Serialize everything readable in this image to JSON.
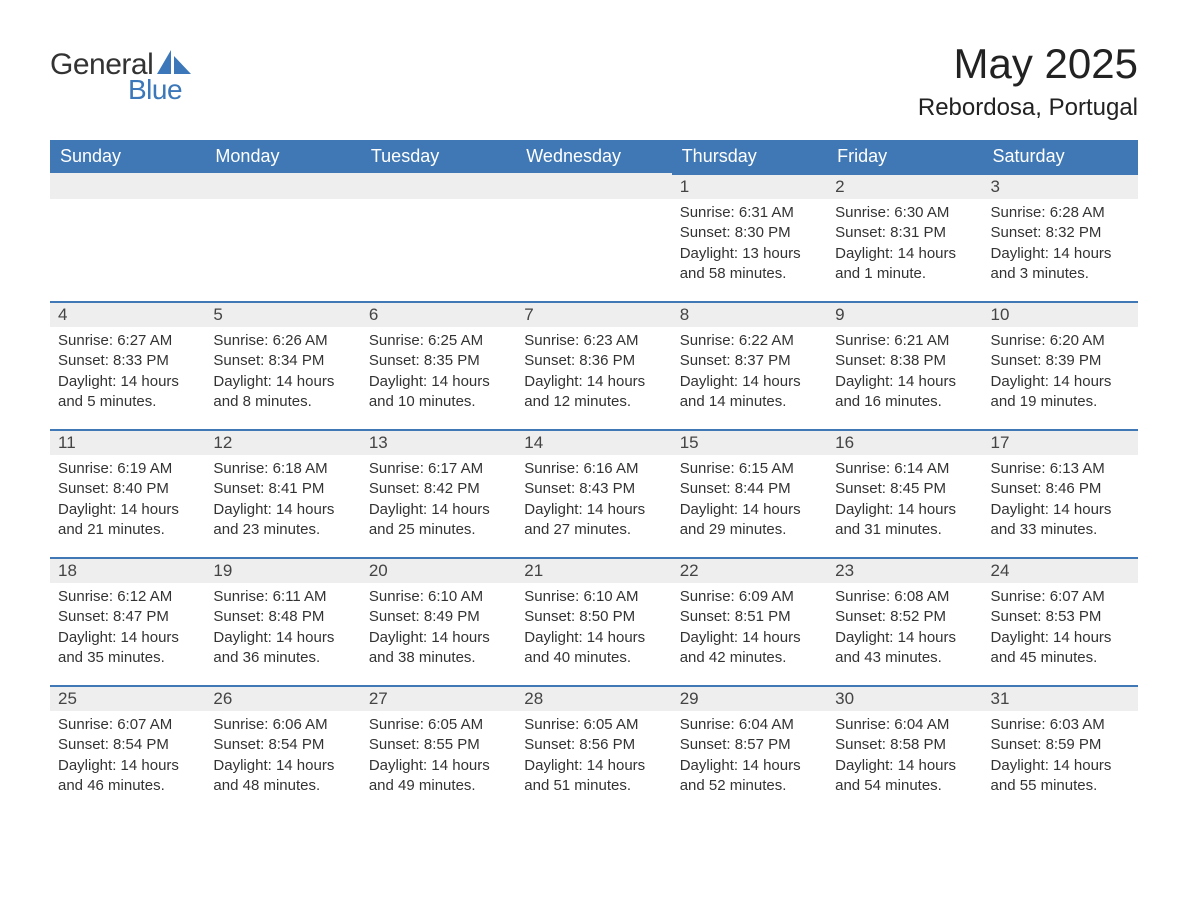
{
  "brand": {
    "text_general": "General",
    "text_blue": "Blue",
    "icon_color": "#3b77b9"
  },
  "title": "May 2025",
  "location": "Rebordosa, Portugal",
  "colors": {
    "header_bg": "#3f78b5",
    "header_text": "#ffffff",
    "daybar_bg": "#eeeeee",
    "daybar_border": "#3f78b5",
    "body_text": "#333333",
    "page_bg": "#ffffff"
  },
  "typography": {
    "title_fontsize": 42,
    "location_fontsize": 24,
    "weekday_fontsize": 18,
    "daynum_fontsize": 17,
    "body_fontsize": 15,
    "font_family": "Arial"
  },
  "weekdays": [
    "Sunday",
    "Monday",
    "Tuesday",
    "Wednesday",
    "Thursday",
    "Friday",
    "Saturday"
  ],
  "weeks": [
    [
      null,
      null,
      null,
      null,
      {
        "day": "1",
        "sunrise": "Sunrise: 6:31 AM",
        "sunset": "Sunset: 8:30 PM",
        "daylight": "Daylight: 13 hours and 58 minutes."
      },
      {
        "day": "2",
        "sunrise": "Sunrise: 6:30 AM",
        "sunset": "Sunset: 8:31 PM",
        "daylight": "Daylight: 14 hours and 1 minute."
      },
      {
        "day": "3",
        "sunrise": "Sunrise: 6:28 AM",
        "sunset": "Sunset: 8:32 PM",
        "daylight": "Daylight: 14 hours and 3 minutes."
      }
    ],
    [
      {
        "day": "4",
        "sunrise": "Sunrise: 6:27 AM",
        "sunset": "Sunset: 8:33 PM",
        "daylight": "Daylight: 14 hours and 5 minutes."
      },
      {
        "day": "5",
        "sunrise": "Sunrise: 6:26 AM",
        "sunset": "Sunset: 8:34 PM",
        "daylight": "Daylight: 14 hours and 8 minutes."
      },
      {
        "day": "6",
        "sunrise": "Sunrise: 6:25 AM",
        "sunset": "Sunset: 8:35 PM",
        "daylight": "Daylight: 14 hours and 10 minutes."
      },
      {
        "day": "7",
        "sunrise": "Sunrise: 6:23 AM",
        "sunset": "Sunset: 8:36 PM",
        "daylight": "Daylight: 14 hours and 12 minutes."
      },
      {
        "day": "8",
        "sunrise": "Sunrise: 6:22 AM",
        "sunset": "Sunset: 8:37 PM",
        "daylight": "Daylight: 14 hours and 14 minutes."
      },
      {
        "day": "9",
        "sunrise": "Sunrise: 6:21 AM",
        "sunset": "Sunset: 8:38 PM",
        "daylight": "Daylight: 14 hours and 16 minutes."
      },
      {
        "day": "10",
        "sunrise": "Sunrise: 6:20 AM",
        "sunset": "Sunset: 8:39 PM",
        "daylight": "Daylight: 14 hours and 19 minutes."
      }
    ],
    [
      {
        "day": "11",
        "sunrise": "Sunrise: 6:19 AM",
        "sunset": "Sunset: 8:40 PM",
        "daylight": "Daylight: 14 hours and 21 minutes."
      },
      {
        "day": "12",
        "sunrise": "Sunrise: 6:18 AM",
        "sunset": "Sunset: 8:41 PM",
        "daylight": "Daylight: 14 hours and 23 minutes."
      },
      {
        "day": "13",
        "sunrise": "Sunrise: 6:17 AM",
        "sunset": "Sunset: 8:42 PM",
        "daylight": "Daylight: 14 hours and 25 minutes."
      },
      {
        "day": "14",
        "sunrise": "Sunrise: 6:16 AM",
        "sunset": "Sunset: 8:43 PM",
        "daylight": "Daylight: 14 hours and 27 minutes."
      },
      {
        "day": "15",
        "sunrise": "Sunrise: 6:15 AM",
        "sunset": "Sunset: 8:44 PM",
        "daylight": "Daylight: 14 hours and 29 minutes."
      },
      {
        "day": "16",
        "sunrise": "Sunrise: 6:14 AM",
        "sunset": "Sunset: 8:45 PM",
        "daylight": "Daylight: 14 hours and 31 minutes."
      },
      {
        "day": "17",
        "sunrise": "Sunrise: 6:13 AM",
        "sunset": "Sunset: 8:46 PM",
        "daylight": "Daylight: 14 hours and 33 minutes."
      }
    ],
    [
      {
        "day": "18",
        "sunrise": "Sunrise: 6:12 AM",
        "sunset": "Sunset: 8:47 PM",
        "daylight": "Daylight: 14 hours and 35 minutes."
      },
      {
        "day": "19",
        "sunrise": "Sunrise: 6:11 AM",
        "sunset": "Sunset: 8:48 PM",
        "daylight": "Daylight: 14 hours and 36 minutes."
      },
      {
        "day": "20",
        "sunrise": "Sunrise: 6:10 AM",
        "sunset": "Sunset: 8:49 PM",
        "daylight": "Daylight: 14 hours and 38 minutes."
      },
      {
        "day": "21",
        "sunrise": "Sunrise: 6:10 AM",
        "sunset": "Sunset: 8:50 PM",
        "daylight": "Daylight: 14 hours and 40 minutes."
      },
      {
        "day": "22",
        "sunrise": "Sunrise: 6:09 AM",
        "sunset": "Sunset: 8:51 PM",
        "daylight": "Daylight: 14 hours and 42 minutes."
      },
      {
        "day": "23",
        "sunrise": "Sunrise: 6:08 AM",
        "sunset": "Sunset: 8:52 PM",
        "daylight": "Daylight: 14 hours and 43 minutes."
      },
      {
        "day": "24",
        "sunrise": "Sunrise: 6:07 AM",
        "sunset": "Sunset: 8:53 PM",
        "daylight": "Daylight: 14 hours and 45 minutes."
      }
    ],
    [
      {
        "day": "25",
        "sunrise": "Sunrise: 6:07 AM",
        "sunset": "Sunset: 8:54 PM",
        "daylight": "Daylight: 14 hours and 46 minutes."
      },
      {
        "day": "26",
        "sunrise": "Sunrise: 6:06 AM",
        "sunset": "Sunset: 8:54 PM",
        "daylight": "Daylight: 14 hours and 48 minutes."
      },
      {
        "day": "27",
        "sunrise": "Sunrise: 6:05 AM",
        "sunset": "Sunset: 8:55 PM",
        "daylight": "Daylight: 14 hours and 49 minutes."
      },
      {
        "day": "28",
        "sunrise": "Sunrise: 6:05 AM",
        "sunset": "Sunset: 8:56 PM",
        "daylight": "Daylight: 14 hours and 51 minutes."
      },
      {
        "day": "29",
        "sunrise": "Sunrise: 6:04 AM",
        "sunset": "Sunset: 8:57 PM",
        "daylight": "Daylight: 14 hours and 52 minutes."
      },
      {
        "day": "30",
        "sunrise": "Sunrise: 6:04 AM",
        "sunset": "Sunset: 8:58 PM",
        "daylight": "Daylight: 14 hours and 54 minutes."
      },
      {
        "day": "31",
        "sunrise": "Sunrise: 6:03 AM",
        "sunset": "Sunset: 8:59 PM",
        "daylight": "Daylight: 14 hours and 55 minutes."
      }
    ]
  ]
}
